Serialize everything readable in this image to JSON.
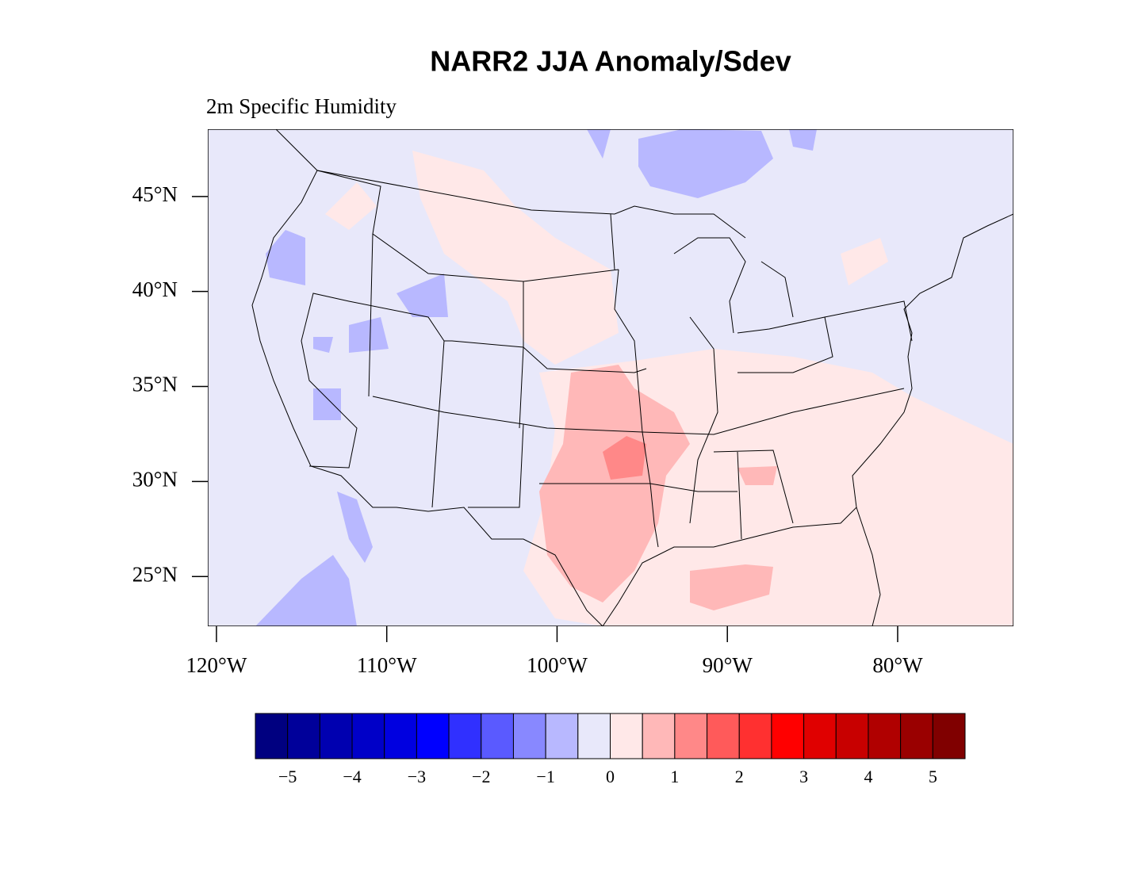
{
  "chart_data": {
    "type": "map",
    "title": "NARR2 JJA Anomaly/Sdev",
    "subtitle": "2m Specific Humidity",
    "xlim": [
      -120.51,
      -73.2
    ],
    "ylim": [
      22.38,
      48.54
    ],
    "xticks": [
      {
        "value": -120,
        "label": "120°W"
      },
      {
        "value": -110,
        "label": "110°W"
      },
      {
        "value": -100,
        "label": "100°W"
      },
      {
        "value": -90,
        "label": "90°W"
      },
      {
        "value": -80,
        "label": "80°W"
      }
    ],
    "yticks": [
      {
        "value": 25,
        "label": "25°N"
      },
      {
        "value": 30,
        "label": "30°N"
      },
      {
        "value": 35,
        "label": "35°N"
      },
      {
        "value": 40,
        "label": "40°N"
      },
      {
        "value": 45,
        "label": "45°N"
      }
    ],
    "colorbar": {
      "colors": [
        "#000080",
        "#00009a",
        "#0000b0",
        "#0000c8",
        "#0000e0",
        "#0000ff",
        "#3030ff",
        "#5a5aff",
        "#8888ff",
        "#b8b8ff",
        "#e8e8fa",
        "#ffe8e8",
        "#ffb8b8",
        "#ff8888",
        "#ff5a5a",
        "#ff3030",
        "#ff0000",
        "#e00000",
        "#c80000",
        "#b00000",
        "#9a0000",
        "#800000"
      ],
      "ticks": [
        {
          "value": -5,
          "label": "−5"
        },
        {
          "value": -4,
          "label": "−4"
        },
        {
          "value": -3,
          "label": "−3"
        },
        {
          "value": -2,
          "label": "−2"
        },
        {
          "value": -1,
          "label": "−1"
        },
        0,
        1,
        2,
        3,
        4,
        5
      ]
    }
  }
}
